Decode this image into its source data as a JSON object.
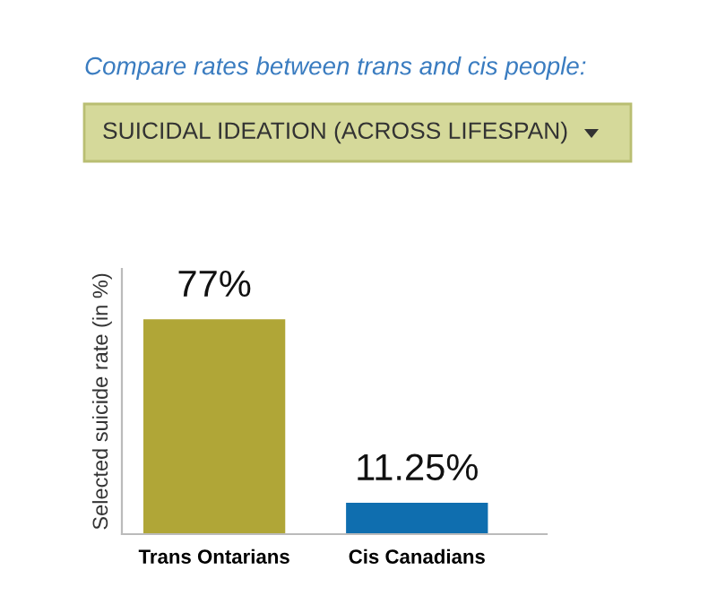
{
  "chart_data": {
    "type": "bar",
    "title": "Compare rates between trans and cis people:",
    "subtitle": "SUICIDAL IDEATION (ACROSS LIFESPAN)",
    "ylabel": "Selected suicide rate (in %)",
    "categories": [
      "Trans Ontarians",
      "Cis Canadians"
    ],
    "values": [
      77,
      11.25
    ],
    "colors": [
      "#b0a637",
      "#0f6eaf"
    ],
    "value_labels": [
      "77%",
      "11.25%"
    ],
    "grid": false,
    "legend": false
  }
}
